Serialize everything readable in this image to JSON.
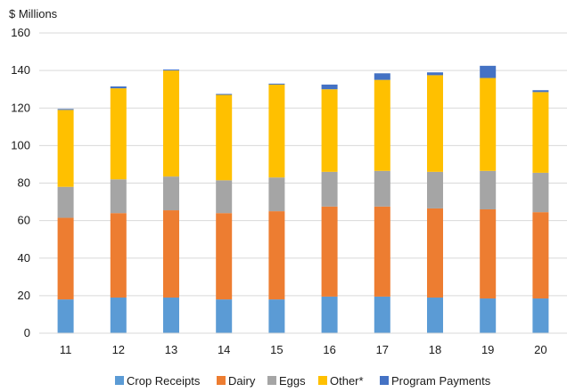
{
  "chart_data": {
    "type": "bar",
    "stacked": true,
    "ylabel": "$ Millions",
    "categories": [
      "11",
      "12",
      "13",
      "14",
      "15",
      "16",
      "17",
      "18",
      "19",
      "20"
    ],
    "ylim": [
      0,
      160
    ],
    "yticks": [
      0,
      20,
      40,
      60,
      80,
      100,
      120,
      140,
      160
    ],
    "grid": true,
    "legend_position": "bottom",
    "series": [
      {
        "name": "Crop Receipts",
        "color": "#5b9bd5",
        "values": [
          18,
          19,
          19,
          18,
          18,
          19.5,
          19.5,
          19,
          18.5,
          18.5
        ]
      },
      {
        "name": "Dairy",
        "color": "#ed7d31",
        "values": [
          43.5,
          45,
          46.5,
          46,
          47,
          48,
          48,
          47.5,
          47.5,
          46
        ]
      },
      {
        "name": "Eggs",
        "color": "#a5a5a5",
        "values": [
          16.5,
          18,
          18,
          17.5,
          18,
          18.5,
          19,
          19.5,
          20.5,
          21
        ]
      },
      {
        "name": "Other*",
        "color": "#ffc000",
        "values": [
          41,
          48.5,
          56.5,
          45.5,
          49.5,
          44,
          48.5,
          51.5,
          49.5,
          43
        ]
      },
      {
        "name": "Program Payments",
        "color": "#4472c4",
        "values": [
          0.5,
          1,
          0.5,
          0.5,
          0.5,
          2.5,
          3.5,
          1.5,
          6.5,
          1
        ]
      }
    ]
  }
}
